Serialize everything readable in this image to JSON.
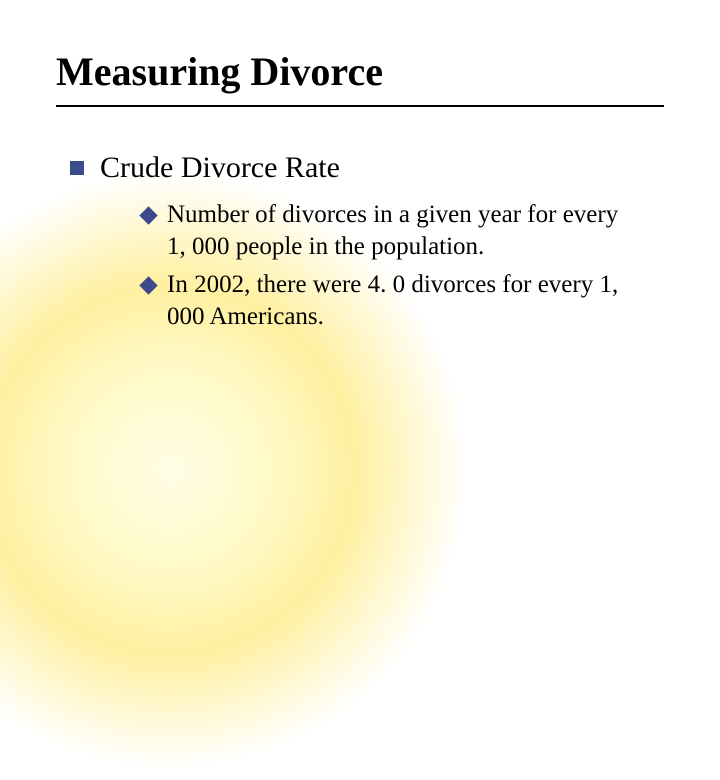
{
  "slide": {
    "title": "Measuring Divorce",
    "bullet_colors": {
      "square": "#3a4a8a",
      "diamond": "#3a4a8a"
    },
    "glow_colors": [
      "#fffde6",
      "#fff9c4",
      "#fff0a0"
    ],
    "text_color": "#000000",
    "background_color": "#ffffff",
    "title_fontsize": 40,
    "level1_fontsize": 30,
    "level2_fontsize": 25,
    "level1": {
      "text": "Crude Divorce Rate",
      "children": [
        {
          "text": "Number of divorces in a given year for every 1, 000 people in the population."
        },
        {
          "text": " In 2002, there were 4. 0 divorces for every 1, 000 Americans."
        }
      ]
    }
  }
}
